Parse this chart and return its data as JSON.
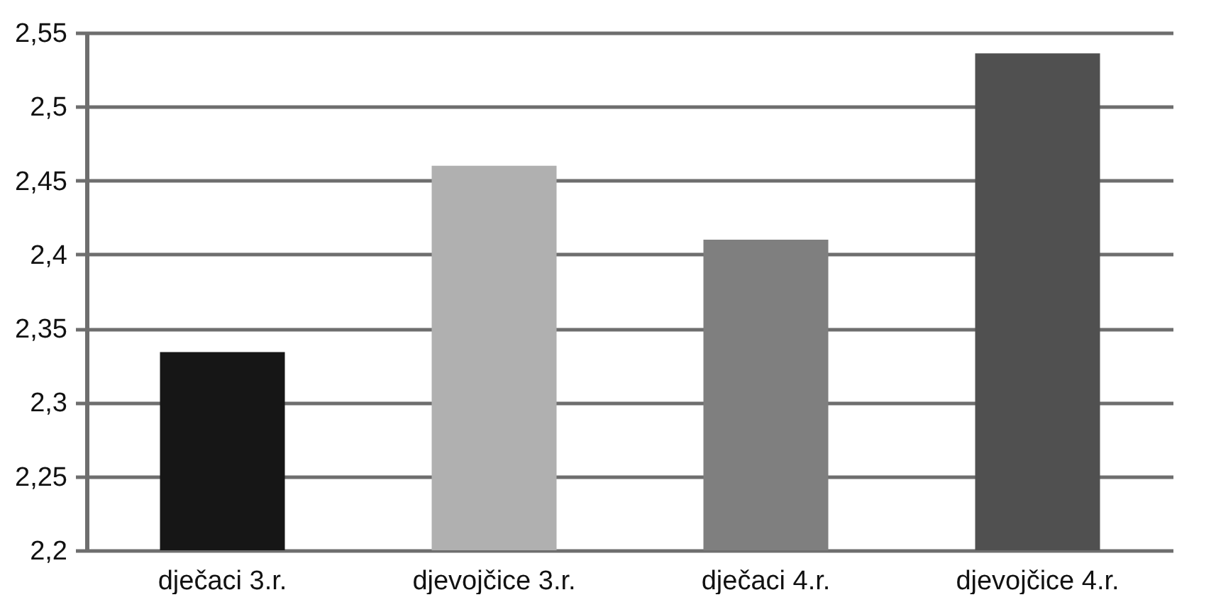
{
  "chart_data": {
    "type": "bar",
    "categories": [
      "dječaci 3.r.",
      "djevojčice 3.r.",
      "dječaci 4.r.",
      "djevojčice 4.r."
    ],
    "values": [
      2.334,
      2.46,
      2.41,
      2.536
    ],
    "colors": [
      "#161616",
      "#b0b0b0",
      "#7f7f7f",
      "#505050"
    ],
    "ylim": [
      2.2,
      2.55
    ],
    "yticks": [
      {
        "value": 2.2,
        "label": "2,2"
      },
      {
        "value": 2.25,
        "label": "2,25"
      },
      {
        "value": 2.3,
        "label": "2,3"
      },
      {
        "value": 2.35,
        "label": "2,35"
      },
      {
        "value": 2.4,
        "label": "2,4"
      },
      {
        "value": 2.45,
        "label": "2,45"
      },
      {
        "value": 2.5,
        "label": "2,5"
      },
      {
        "value": 2.55,
        "label": "2,55"
      }
    ],
    "grid": "y"
  }
}
